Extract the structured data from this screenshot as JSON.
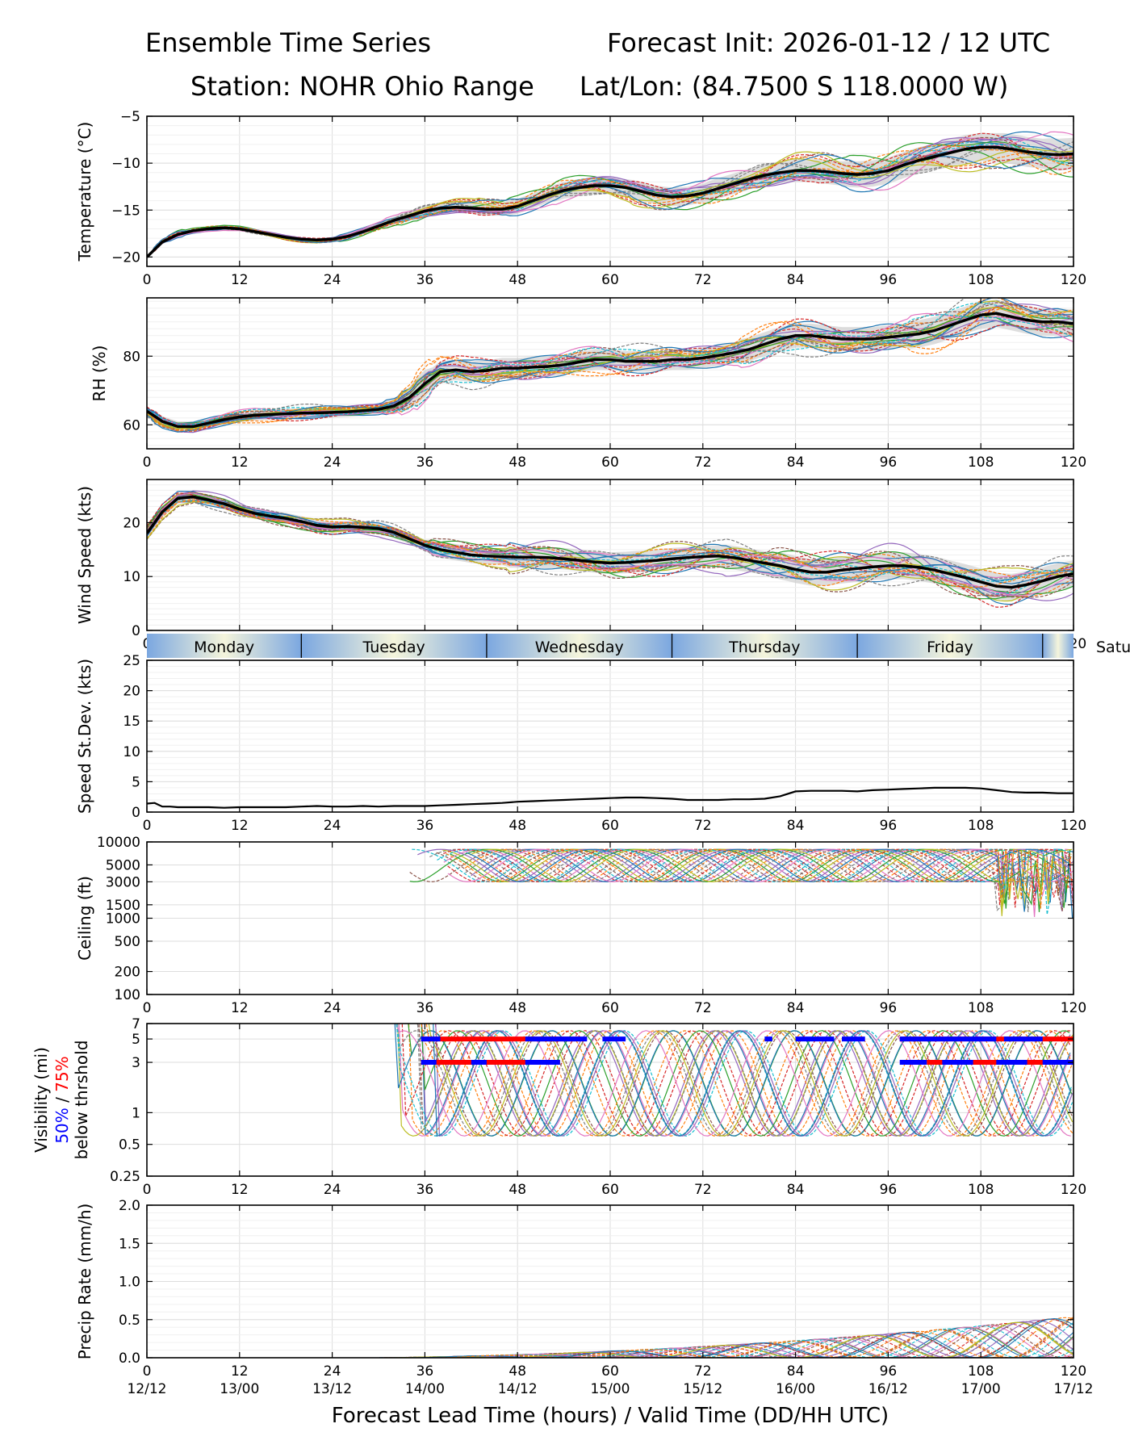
{
  "header": {
    "title_left": "Ensemble Time Series",
    "title_right": "Forecast Init: 2026-01-12 / 12 UTC",
    "station": "Station: NOHR Ohio Range",
    "latlon": "Lat/Lon: (84.7500 S 118.0000 W)"
  },
  "colors": {
    "ensemble": [
      "#1f77b4",
      "#ff7f0e",
      "#2ca02c",
      "#d62728",
      "#9467bd",
      "#8c564b",
      "#e377c2",
      "#7f7f7f",
      "#bcbd22",
      "#17becf"
    ],
    "mean": "#000000",
    "spread": "#c8c8c8",
    "vis50": "#0000ff",
    "vis75": "#ff0000",
    "day_light": "#f5f5dc",
    "day_dark": "#7ba7e0"
  },
  "chart_data": [
    {
      "type": "line",
      "id": "temperature",
      "ylabel": "Temperature (°C)",
      "ylim": [
        -21,
        -5
      ],
      "yticks": [
        -20,
        -15,
        -10,
        -5
      ],
      "ytick_labels": [
        "−20",
        "−15",
        "−10",
        "−5"
      ],
      "x_range": [
        0,
        120
      ],
      "mean": {
        "x": [
          0,
          2,
          4,
          6,
          8,
          10,
          12,
          14,
          16,
          18,
          20,
          22,
          24,
          26,
          28,
          30,
          32,
          34,
          36,
          38,
          40,
          42,
          44,
          46,
          48,
          50,
          52,
          54,
          56,
          58,
          60,
          62,
          64,
          66,
          68,
          70,
          72,
          74,
          76,
          78,
          80,
          82,
          84,
          86,
          88,
          90,
          92,
          94,
          96,
          98,
          100,
          102,
          104,
          106,
          108,
          110,
          112,
          114,
          116,
          118,
          120
        ],
        "y": [
          -20,
          -18.4,
          -17.6,
          -17.2,
          -17,
          -16.9,
          -17,
          -17.3,
          -17.6,
          -17.9,
          -18.1,
          -18.2,
          -18.1,
          -17.8,
          -17.3,
          -16.7,
          -16.1,
          -15.6,
          -15.1,
          -14.8,
          -14.7,
          -14.8,
          -14.9,
          -14.9,
          -14.6,
          -14,
          -13.4,
          -12.9,
          -12.6,
          -12.4,
          -12.4,
          -12.6,
          -13,
          -13.4,
          -13.6,
          -13.5,
          -13.2,
          -12.7,
          -12.2,
          -11.7,
          -11.3,
          -11,
          -10.8,
          -10.8,
          -10.9,
          -11.1,
          -11.2,
          -11.1,
          -10.8,
          -10.2,
          -9.7,
          -9.3,
          -8.9,
          -8.5,
          -8.3,
          -8.3,
          -8.5,
          -8.8,
          -9,
          -9.1,
          -9
        ]
      },
      "members": 22,
      "spread": [
        0,
        0.2,
        0.3,
        0.2,
        0.2,
        0.2,
        0.2,
        0.2,
        0.2,
        0.2,
        0.2,
        0.2,
        0.2,
        0.3,
        0.3,
        0.3,
        0.4,
        0.5,
        0.6,
        0.6,
        0.6,
        0.6,
        0.7,
        0.7,
        0.8,
        0.8,
        0.8,
        0.9,
        0.9,
        0.9,
        0.9,
        0.9,
        1,
        1,
        1,
        1,
        1,
        1.1,
        1.1,
        1.1,
        1.2,
        1.2,
        1.2,
        1.2,
        1.3,
        1.3,
        1.4,
        1.4,
        1.4,
        1.4,
        1.4,
        1.4,
        1.5,
        1.5,
        1.5,
        1.5,
        1.6,
        1.6,
        1.6,
        1.7,
        1.7
      ]
    },
    {
      "type": "line",
      "id": "rh",
      "ylabel": "RH (%)",
      "ylim": [
        53,
        97
      ],
      "yticks": [
        60,
        80
      ],
      "ytick_labels": [
        "60",
        "80"
      ],
      "x_range": [
        0,
        120
      ],
      "mean": {
        "x": [
          0,
          2,
          4,
          6,
          8,
          10,
          12,
          14,
          16,
          18,
          20,
          22,
          24,
          26,
          28,
          30,
          32,
          34,
          36,
          38,
          40,
          42,
          44,
          46,
          48,
          50,
          52,
          54,
          56,
          58,
          60,
          62,
          64,
          66,
          68,
          70,
          72,
          74,
          76,
          78,
          80,
          82,
          84,
          86,
          88,
          90,
          92,
          94,
          96,
          98,
          100,
          102,
          104,
          106,
          108,
          110,
          112,
          114,
          116,
          118,
          120
        ],
        "y": [
          64,
          61,
          59.5,
          59.5,
          60.5,
          61.5,
          62.3,
          62.8,
          63,
          63.2,
          63.4,
          63.5,
          63.6,
          63.8,
          64.1,
          64.5,
          65.5,
          68,
          72,
          75.5,
          76,
          75.5,
          75.8,
          76.5,
          76.5,
          76.8,
          77,
          77.5,
          78.3,
          79,
          79,
          78.5,
          78.5,
          78.5,
          79,
          79,
          79.5,
          80.2,
          81,
          82,
          83.5,
          85,
          86,
          86,
          85.5,
          85,
          85,
          85,
          85.5,
          86,
          86.5,
          87.5,
          89,
          90.5,
          92,
          92.5,
          91.5,
          90.5,
          90,
          90,
          89.5
        ]
      },
      "members": 22,
      "spread": [
        1,
        1.5,
        1.5,
        1.5,
        1.5,
        1.5,
        1.5,
        1.5,
        1.5,
        1.5,
        1.5,
        1.5,
        1.5,
        1.5,
        1.5,
        1.5,
        2,
        3,
        4,
        3,
        3,
        3,
        3,
        3,
        3,
        3,
        3,
        3,
        3,
        3,
        3,
        3,
        3,
        3,
        3,
        3,
        3,
        3,
        3,
        3.5,
        3.5,
        3.5,
        3.5,
        3.5,
        3.5,
        3.5,
        3.5,
        3.5,
        3.5,
        3.5,
        4,
        4,
        4,
        4,
        4,
        4,
        4,
        4,
        4,
        4,
        4
      ]
    },
    {
      "type": "line",
      "id": "wind_speed",
      "ylabel": "Wind Speed (kts)",
      "ylim": [
        0,
        28
      ],
      "yticks": [
        0,
        10,
        20
      ],
      "ytick_labels": [
        "0",
        "10",
        "20"
      ],
      "x_range": [
        0,
        120
      ],
      "mean": {
        "x": [
          0,
          2,
          4,
          6,
          8,
          10,
          12,
          14,
          16,
          18,
          20,
          22,
          24,
          26,
          28,
          30,
          32,
          34,
          36,
          38,
          40,
          42,
          44,
          46,
          48,
          50,
          52,
          54,
          56,
          58,
          60,
          62,
          64,
          66,
          68,
          70,
          72,
          74,
          76,
          78,
          80,
          82,
          84,
          86,
          88,
          90,
          92,
          94,
          96,
          98,
          100,
          102,
          104,
          106,
          108,
          110,
          112,
          114,
          116,
          118,
          120
        ],
        "y": [
          18,
          22,
          24.5,
          24.8,
          24.2,
          23.5,
          22.5,
          21.7,
          21.2,
          20.8,
          20.2,
          19.5,
          19.2,
          19.3,
          19.1,
          18.9,
          18.2,
          17,
          15.8,
          15,
          14.5,
          14,
          13.8,
          13.7,
          13.6,
          13.6,
          13.5,
          13.3,
          13,
          12.7,
          12.5,
          12.6,
          12.8,
          13,
          13.3,
          13.5,
          13.7,
          13.8,
          13.5,
          13,
          12.5,
          12,
          11.3,
          10.8,
          10.8,
          11.2,
          11.5,
          11.8,
          12,
          12,
          11.7,
          11.2,
          10.5,
          9.8,
          9,
          8.2,
          8,
          8.5,
          9.2,
          10,
          10.5
        ]
      },
      "members": 22,
      "spread": [
        1,
        1,
        1,
        1,
        1,
        1,
        1,
        1,
        1,
        1,
        1,
        1,
        1,
        1,
        1,
        1,
        1,
        1,
        1,
        1.5,
        1.5,
        1.5,
        1.5,
        1.5,
        2,
        2,
        2,
        2,
        2,
        2,
        2,
        2,
        2,
        2,
        2,
        2,
        2,
        2,
        2.2,
        2.2,
        2.2,
        2.5,
        2.5,
        2.5,
        2.5,
        2.5,
        2.5,
        2.5,
        2.5,
        2.5,
        2.5,
        2.5,
        2.5,
        2.5,
        2.5,
        2.5,
        2.5,
        2.5,
        2.5,
        2.5,
        2.5
      ]
    },
    {
      "type": "line",
      "id": "speed_stdev",
      "ylabel": "Speed St.Dev. (kts)",
      "ylim": [
        0,
        25
      ],
      "yticks": [
        0,
        5,
        10,
        15,
        20,
        25
      ],
      "ytick_labels": [
        "0",
        "5",
        "10",
        "15",
        "20",
        "25"
      ],
      "x_range": [
        0,
        120
      ],
      "mean": {
        "x": [
          0,
          1,
          2,
          3,
          4,
          6,
          8,
          10,
          12,
          14,
          16,
          18,
          20,
          22,
          24,
          26,
          28,
          30,
          32,
          34,
          36,
          38,
          40,
          42,
          44,
          46,
          48,
          50,
          52,
          54,
          56,
          58,
          60,
          62,
          64,
          66,
          68,
          70,
          72,
          74,
          76,
          78,
          80,
          82,
          84,
          86,
          88,
          90,
          92,
          94,
          96,
          98,
          100,
          102,
          104,
          106,
          108,
          110,
          112,
          114,
          116,
          118,
          120
        ],
        "y": [
          1.4,
          1.5,
          0.9,
          0.9,
          0.8,
          0.8,
          0.8,
          0.7,
          0.8,
          0.8,
          0.8,
          0.8,
          0.9,
          1,
          0.9,
          0.9,
          1,
          0.9,
          1,
          1,
          1,
          1.1,
          1.2,
          1.3,
          1.4,
          1.5,
          1.7,
          1.8,
          1.9,
          2,
          2.1,
          2.2,
          2.3,
          2.4,
          2.4,
          2.3,
          2.2,
          2,
          2,
          2,
          2.1,
          2.1,
          2.2,
          2.6,
          3.4,
          3.5,
          3.5,
          3.5,
          3.4,
          3.6,
          3.7,
          3.8,
          3.9,
          4,
          4,
          4,
          3.9,
          3.6,
          3.3,
          3.2,
          3.2,
          3.1,
          3.1
        ]
      }
    },
    {
      "type": "line",
      "id": "ceiling",
      "ylabel": "Ceiling (ft)",
      "yscale": "log",
      "ylim": [
        100,
        10000
      ],
      "yticks": [
        100,
        200,
        500,
        1000,
        1500,
        3000,
        5000,
        10000
      ],
      "ytick_labels": [
        "100",
        "200",
        "500",
        "1000",
        "1500",
        "3000",
        "5000",
        "10000"
      ],
      "x_range": [
        0,
        120
      ],
      "members": 22,
      "data_start_hour": 34
    },
    {
      "type": "line",
      "id": "visibility",
      "ylabel": "Visibility (mi)",
      "ylabel_50": "50%",
      "ylabel_sep": " / ",
      "ylabel_75": "75%",
      "ylabel2": "below thrshold",
      "yscale": "log",
      "ylim": [
        0.25,
        7
      ],
      "yticks": [
        0.25,
        0.5,
        1,
        3,
        5,
        7
      ],
      "ytick_labels": [
        "0.25",
        "0.5",
        "1",
        "3",
        "5",
        "7"
      ],
      "x_range": [
        0,
        120
      ],
      "members": 22,
      "data_start_hour": 31,
      "threshold_bars": [
        {
          "level": 5,
          "color": "red",
          "x": [
            [
              35.5,
              56
            ],
            [
              97.5,
              120
            ]
          ]
        },
        {
          "level": 5,
          "color": "blue",
          "x": [
            [
              35.5,
              38
            ],
            [
              49,
              57
            ],
            [
              59,
              62
            ],
            [
              80,
              81
            ],
            [
              84,
              89
            ],
            [
              90,
              93
            ],
            [
              97.5,
              110
            ],
            [
              111,
              116
            ]
          ]
        },
        {
          "level": 3,
          "color": "red",
          "x": [
            [
              35.5,
              53.5
            ],
            [
              101,
              120
            ]
          ]
        },
        {
          "level": 3,
          "color": "blue",
          "x": [
            [
              35.5,
              37.5
            ],
            [
              42,
              44
            ],
            [
              49,
              53.5
            ],
            [
              97.5,
              101
            ],
            [
              103,
              107
            ],
            [
              110,
              114
            ],
            [
              116,
              120
            ]
          ]
        }
      ]
    },
    {
      "type": "line",
      "id": "precip",
      "ylabel": "Precip Rate (mm/h)",
      "ylim": [
        0,
        2
      ],
      "yticks": [
        0,
        0.5,
        1,
        1.5,
        2
      ],
      "ytick_labels": [
        "0.0",
        "0.5",
        "1.0",
        "1.5",
        "2.0"
      ],
      "x_range": [
        0,
        120
      ],
      "members": 22
    }
  ],
  "xaxis": {
    "ticks": [
      0,
      12,
      24,
      36,
      48,
      60,
      72,
      84,
      96,
      108,
      120
    ],
    "tick_labels": [
      "0",
      "12",
      "24",
      "36",
      "48",
      "60",
      "72",
      "84",
      "96",
      "108",
      "120"
    ],
    "valid_labels": [
      "12/12",
      "13/00",
      "13/12",
      "14/00",
      "14/12",
      "15/00",
      "15/12",
      "16/00",
      "16/12",
      "17/00",
      "17/12"
    ],
    "xlabel": "Forecast Lead Time (hours) / Valid Time (DD/HH UTC)"
  },
  "days": [
    {
      "label": "Monday",
      "start": 0,
      "end": 20
    },
    {
      "label": "Tuesday",
      "start": 20,
      "end": 44
    },
    {
      "label": "Wednesday",
      "start": 44,
      "end": 68
    },
    {
      "label": "Thursday",
      "start": 68,
      "end": 92
    },
    {
      "label": "Friday",
      "start": 92,
      "end": 116
    },
    {
      "label": "Saturday",
      "start": 116,
      "end": 140
    }
  ]
}
